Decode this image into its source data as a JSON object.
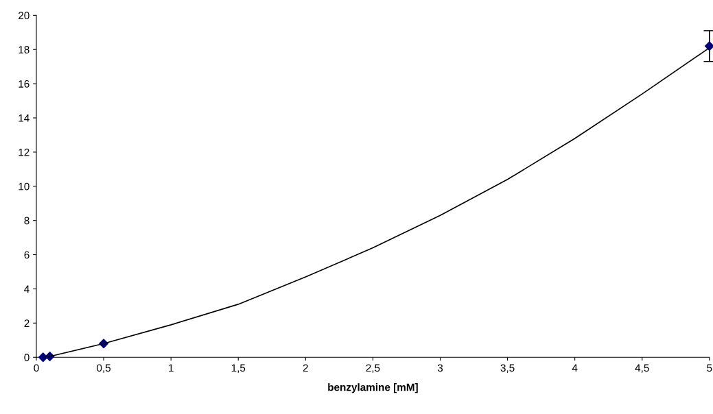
{
  "chart_data": {
    "type": "scatter",
    "xlabel": "benzylamine [mM]",
    "xlim": [
      0,
      5
    ],
    "xticks": [
      0,
      {
        "value": 0.5,
        "label": "0,5"
      },
      1,
      {
        "value": 1.5,
        "label": "1,5"
      },
      2,
      {
        "value": 2.5,
        "label": "2,5"
      },
      3,
      {
        "value": 3.5,
        "label": "3,5"
      },
      4,
      {
        "value": 4.5,
        "label": "4,5"
      },
      5
    ],
    "ylim": [
      0,
      20
    ],
    "yticks": [
      0,
      2,
      4,
      6,
      8,
      10,
      12,
      14,
      16,
      18,
      20
    ],
    "grid": false,
    "legend": false,
    "series": [
      {
        "color": "#000080",
        "marker": "diamond",
        "x": [
          0.05,
          0.1,
          0.5,
          5
        ],
        "values": [
          0,
          0.05,
          0.8,
          18.2
        ],
        "errors": [
          null,
          null,
          null,
          0.9
        ]
      },
      {
        "type": "line",
        "color": "#000000",
        "marker": "none",
        "line_style": "solid",
        "x": [
          0.05,
          0.1,
          0.5,
          1,
          1.5,
          2,
          2.5,
          3,
          3.5,
          4,
          4.5,
          5
        ],
        "values": [
          0,
          0.05,
          0.8,
          1.9,
          3.1,
          4.7,
          6.4,
          8.3,
          10.4,
          12.8,
          15.4,
          18.1
        ]
      }
    ]
  }
}
